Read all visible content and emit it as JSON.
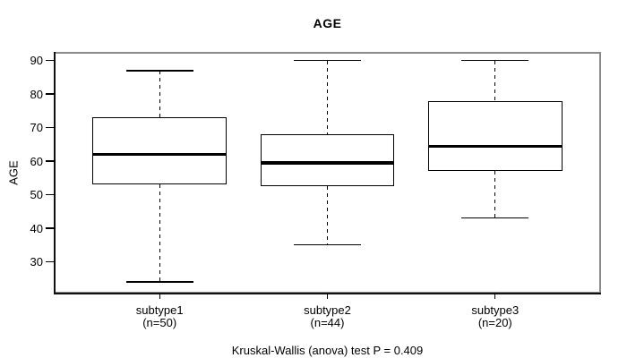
{
  "title": "AGE",
  "y_axis_label": "AGE",
  "footer": "Kruskal-Wallis (anova) test P = 0.409",
  "colors": {
    "frame": "#8a8a8a",
    "axis": "#101010",
    "box_border": "#000000",
    "median": "#000000",
    "text": "#000000",
    "background": "#ffffff"
  },
  "chart_data": {
    "type": "boxplot",
    "title": "AGE",
    "xlabel": "",
    "ylabel": "AGE",
    "ylim": [
      20.9,
      92.1
    ],
    "yticks": [
      30,
      40,
      50,
      60,
      70,
      80,
      90
    ],
    "grid": false,
    "legend": false,
    "orientation": "vertical",
    "annotation": "Kruskal-Wallis (anova) test P = 0.409",
    "categories": [
      "subtype1",
      "subtype2",
      "subtype3"
    ],
    "groups": [
      {
        "label": "subtype1",
        "sublabel": "(n=50)",
        "n": 50,
        "stats": {
          "whisker_low": 24,
          "q1": 53,
          "median": 62,
          "q3": 73,
          "whisker_high": 87
        },
        "outliers": []
      },
      {
        "label": "subtype2",
        "sublabel": "(n=44)",
        "n": 44,
        "stats": {
          "whisker_low": 35,
          "q1": 52.5,
          "median": 59.5,
          "q3": 68,
          "whisker_high": 90
        },
        "outliers": []
      },
      {
        "label": "subtype3",
        "sublabel": "(n=20)",
        "n": 20,
        "stats": {
          "whisker_low": 43,
          "q1": 57,
          "median": 64.5,
          "q3": 78,
          "whisker_high": 90
        },
        "outliers": []
      }
    ]
  }
}
